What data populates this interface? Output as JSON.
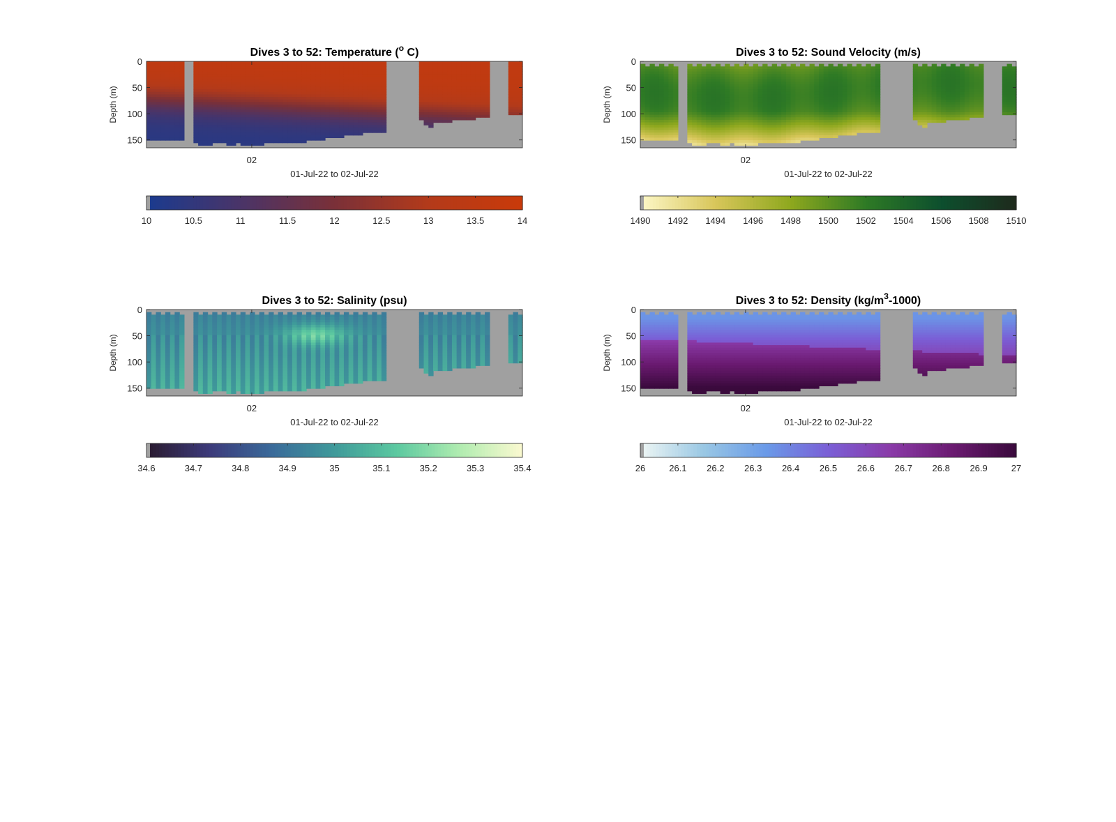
{
  "figure": {
    "background": "#ffffff",
    "nodata_color": "#a0a0a0"
  },
  "chart_data": [
    {
      "type": "heatmap",
      "title": "Dives 3 to 52: Temperature (",
      "title_super": "o",
      "title_after": " C)",
      "xlabel": "01-Jul-22 to 02-Jul-22",
      "ylabel": "Depth (m)",
      "x_tick_labels": [
        "02"
      ],
      "y_ticks": [
        0,
        50,
        100,
        150
      ],
      "ylim": [
        0,
        165
      ],
      "colorbar": {
        "min": 10,
        "max": 14,
        "tick_labels": [
          "10",
          "10.5",
          "11",
          "11.5",
          "12",
          "12.5",
          "13",
          "13.5",
          "14"
        ],
        "colors": [
          "#1a3b8f",
          "#4a3468",
          "#7a3038",
          "#b33a1a",
          "#c93a0a"
        ]
      },
      "field": "temperature",
      "surface_value": 13.6,
      "deep_value": 10.3
    },
    {
      "type": "heatmap",
      "title": "Dives 3 to 52: Sound Velocity (m/s)",
      "xlabel": "01-Jul-22 to 02-Jul-22",
      "ylabel": "Depth (m)",
      "x_tick_labels": [
        "02"
      ],
      "y_ticks": [
        0,
        50,
        100,
        150
      ],
      "ylim": [
        0,
        165
      ],
      "colorbar": {
        "min": 1490,
        "max": 1510,
        "tick_labels": [
          "1490",
          "1492",
          "1494",
          "1496",
          "1498",
          "1500",
          "1502",
          "1504",
          "1506",
          "1508",
          "1510"
        ],
        "colors": [
          "#fdf8c8",
          "#d8c65a",
          "#8ea81e",
          "#2e7a25",
          "#0d4f2e",
          "#1e2a1c"
        ]
      },
      "field": "sound_velocity",
      "surface_value": 1501,
      "deep_value": 1495
    },
    {
      "type": "heatmap",
      "title": "Dives 3 to 52: Salinity (psu)",
      "xlabel": "01-Jul-22 to 02-Jul-22",
      "ylabel": "Depth (m)",
      "x_tick_labels": [
        "02"
      ],
      "y_ticks": [
        0,
        50,
        100,
        150
      ],
      "ylim": [
        0,
        165
      ],
      "colorbar": {
        "min": 34.6,
        "max": 35.4,
        "tick_labels": [
          "34.6",
          "34.7",
          "34.8",
          "34.9",
          "35",
          "35.1",
          "35.2",
          "35.3",
          "35.4"
        ],
        "colors": [
          "#2a1a2e",
          "#3c3a7a",
          "#3a6a9a",
          "#3f9a9a",
          "#5cc9a0",
          "#b0ecb0",
          "#fbf9d0"
        ]
      },
      "field": "salinity",
      "surface_value": 34.95,
      "deep_value": 35.05
    },
    {
      "type": "heatmap",
      "title": "Dives 3 to 52: Density (kg/m",
      "title_super": "3",
      "title_after": "-1000)",
      "xlabel": "01-Jul-22 to 02-Jul-22",
      "ylabel": "Depth (m)",
      "x_tick_labels": [
        "02"
      ],
      "y_ticks": [
        0,
        50,
        100,
        150
      ],
      "ylim": [
        0,
        165
      ],
      "colorbar": {
        "min": 26,
        "max": 27,
        "tick_labels": [
          "26",
          "26.1",
          "26.2",
          "26.3",
          "26.4",
          "26.5",
          "26.6",
          "26.7",
          "26.8",
          "26.9",
          "27"
        ],
        "colors": [
          "#eef6f4",
          "#9ac8e4",
          "#6a9ae8",
          "#7a5fd6",
          "#8a3aa8",
          "#6a1a70",
          "#3a0a3c"
        ]
      },
      "field": "density",
      "surface_value": 26.35,
      "deep_value": 26.9
    }
  ]
}
